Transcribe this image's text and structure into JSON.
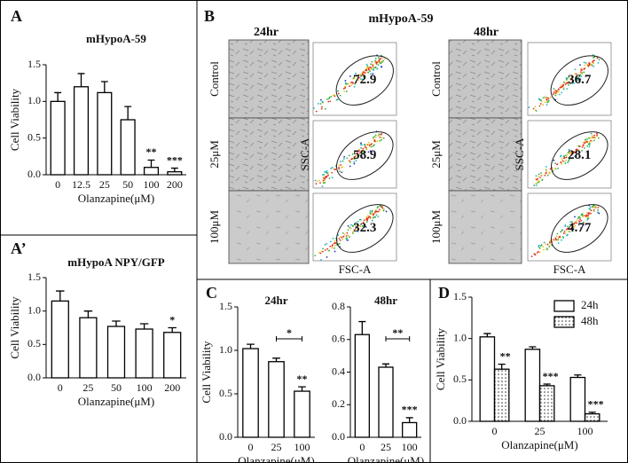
{
  "panel_labels": [
    "A",
    "A’",
    "B",
    "C",
    "D"
  ],
  "chart_data": [
    {
      "type": "bar",
      "title": "mHypoA-59",
      "xlabel": "Olanzapine(μM)",
      "ylabel": "Cell Viability",
      "categories": [
        "0",
        "12.5",
        "25",
        "50",
        "100",
        "200"
      ],
      "values": [
        1.0,
        1.2,
        1.12,
        0.75,
        0.1,
        0.04
      ],
      "errors": [
        0.12,
        0.18,
        0.15,
        0.18,
        0.1,
        0.05
      ],
      "color": "#ffffff",
      "ylim": [
        0,
        1.5
      ],
      "yticks": [
        {
          "value": 0,
          "label": "0.0"
        },
        0.5,
        {
          "value": 1,
          "label": "1.0"
        },
        1.5
      ],
      "annotations": [
        {
          "text": "**",
          "x": "100"
        },
        {
          "text": "***",
          "x": "200"
        }
      ]
    },
    {
      "type": "bar",
      "title": "mHypoA NPY/GFP",
      "xlabel": "Olanzapine(μM)",
      "ylabel": "Cell Viability",
      "categories": [
        "0",
        "25",
        "50",
        "100",
        "200"
      ],
      "values": [
        1.15,
        0.9,
        0.77,
        0.73,
        0.68
      ],
      "errors": [
        0.15,
        0.1,
        0.08,
        0.08,
        0.07
      ],
      "color": "#ffffff",
      "ylim": [
        0,
        1.5
      ],
      "yticks": [
        {
          "value": 0,
          "label": "0.0"
        },
        0.5,
        {
          "value": 1,
          "label": "1.0"
        },
        1.5
      ],
      "annotations": [
        {
          "text": "*",
          "x": "200"
        }
      ]
    },
    {
      "type": "bar",
      "title": "24hr",
      "xlabel": "Olanzapine(μM)",
      "ylabel": "Cell Viability",
      "categories": [
        "0",
        "25",
        "100"
      ],
      "values": [
        1.02,
        0.87,
        0.53
      ],
      "errors": [
        0.05,
        0.04,
        0.05
      ],
      "color": "#ffffff",
      "ylim": [
        0,
        1.5
      ],
      "yticks": [
        {
          "value": 0,
          "label": "0.0"
        },
        0.5,
        {
          "value": 1,
          "label": "1.0"
        },
        1.5
      ],
      "annotations": [
        {
          "text": "**",
          "x": "100"
        }
      ],
      "brackets": [
        {
          "text": "*",
          "from": "25",
          "to": "100"
        }
      ]
    },
    {
      "type": "bar",
      "title": "48hr",
      "xlabel": "Olanzapine(μM)",
      "categories": [
        "0",
        "25",
        "100"
      ],
      "values": [
        0.63,
        0.43,
        0.09
      ],
      "errors": [
        0.08,
        0.02,
        0.03
      ],
      "color": "#ffffff",
      "ylim": [
        0,
        0.8
      ],
      "yticks": [
        {
          "value": 0,
          "label": "0.0"
        },
        0.2,
        0.4,
        0.6,
        0.8
      ],
      "annotations": [
        {
          "text": "***",
          "x": "100"
        }
      ],
      "brackets": [
        {
          "text": "**",
          "from": "25",
          "to": "100"
        }
      ]
    },
    {
      "type": "grouped-bar",
      "xlabel": "Olanzapine(μM)",
      "ylabel": "Cell Viability",
      "categories": [
        "0",
        "25",
        "100"
      ],
      "series": [
        {
          "name": "24h",
          "color": "#ffffff",
          "values": [
            1.02,
            0.87,
            0.53
          ],
          "errors": [
            0.04,
            0.03,
            0.03
          ]
        },
        {
          "name": "48h",
          "color": "#ffffff",
          "fill_pattern": "dots",
          "values": [
            0.63,
            0.43,
            0.09
          ],
          "errors": [
            0.06,
            0.02,
            0.02
          ]
        }
      ],
      "ylim": [
        0,
        1.5
      ],
      "yticks": [
        {
          "value": 0,
          "label": "0.0"
        },
        0.5,
        {
          "value": 1,
          "label": "1.0"
        },
        1.5
      ],
      "legend": "upper right",
      "annotations": [
        {
          "text": "**",
          "x": "0",
          "series": "48h"
        },
        {
          "text": "***",
          "x": "25",
          "series": "48h"
        },
        {
          "text": "***",
          "x": "100",
          "series": "48h"
        }
      ]
    }
  ],
  "panel_b": {
    "title": "mHypoA-59",
    "columns": [
      {
        "time": "24hr",
        "rows": [
          "Control",
          "25μM",
          "100μM"
        ],
        "gates": [
          "72.9",
          "58.9",
          "32.3"
        ],
        "y_axis": "SSC-A",
        "x_axis": "FSC-A"
      },
      {
        "time": "48hr",
        "rows": [
          "Control",
          "25μM",
          "100μM"
        ],
        "gates": [
          "36.7",
          "28.1",
          "4.77"
        ],
        "y_axis": "SSC-A",
        "x_axis": "FSC-A"
      }
    ]
  }
}
